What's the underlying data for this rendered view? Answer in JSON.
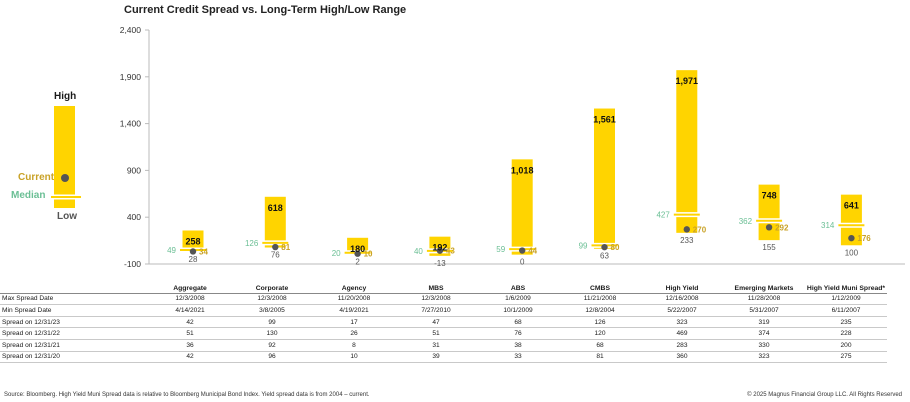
{
  "title": "Current Credit Spread vs. Long-Term High/Low Range",
  "legend": {
    "high": "High",
    "current": "Current",
    "median": "Median",
    "low": "Low"
  },
  "colors": {
    "bar": "#ffd400",
    "median": "#6bbf95",
    "current_dot": "#555555",
    "current_label": "#c9a227",
    "axis": "#bbbbbb"
  },
  "chart_data": {
    "type": "bar",
    "subtype": "high-low range with current and median markers",
    "ylim": [
      -100,
      2400
    ],
    "yticks": [
      "-100",
      "400",
      "900",
      "1,400",
      "1,900",
      "2,400"
    ],
    "ytick_values": [
      -100,
      400,
      900,
      1400,
      1900,
      2400
    ],
    "grid": false,
    "categories": [
      "Aggregate",
      "Corporate",
      "Agency",
      "MBS",
      "ABS",
      "CMBS",
      "High Yield",
      "Emerging Markets",
      "High Yield Muni Spread*"
    ],
    "high": [
      258,
      618,
      180,
      192,
      1018,
      1561,
      1971,
      748,
      641
    ],
    "low": [
      28,
      76,
      2,
      -13,
      0,
      63,
      233,
      155,
      100
    ],
    "current": [
      34,
      81,
      10,
      43,
      44,
      80,
      270,
      292,
      176
    ],
    "median": [
      49,
      126,
      20,
      40,
      59,
      99,
      427,
      362,
      314
    ],
    "high_labels": [
      "258",
      "618",
      "180",
      "192",
      "1,018",
      "1,561",
      "1,971",
      "748",
      "641"
    ],
    "low_labels": [
      "28",
      "76",
      "2",
      "-13",
      "0",
      "63",
      "233",
      "155",
      "100"
    ],
    "current_labels": [
      "34",
      "81",
      "10",
      "43",
      "44",
      "80",
      "270",
      "292",
      "176"
    ],
    "median_labels": [
      "49",
      "126",
      "20",
      "40",
      "59",
      "99",
      "427",
      "362",
      "314"
    ]
  },
  "table": {
    "headers": [
      "Aggregate",
      "Corporate",
      "Agency",
      "MBS",
      "ABS",
      "CMBS",
      "High Yield",
      "Emerging Markets",
      "High Yield Muni Spread*"
    ],
    "rows": [
      {
        "label": "Max Spread Date",
        "values": [
          "12/3/2008",
          "12/3/2008",
          "11/20/2008",
          "12/3/2008",
          "1/6/2009",
          "11/21/2008",
          "12/16/2008",
          "11/28/2008",
          "1/12/2009"
        ]
      },
      {
        "label": "Min Spread Date",
        "values": [
          "4/14/2021",
          "3/8/2005",
          "4/19/2021",
          "7/27/2010",
          "10/1/2009",
          "12/8/2004",
          "5/22/2007",
          "5/31/2007",
          "6/11/2007"
        ]
      },
      {
        "label": "Spread on 12/31/23",
        "values": [
          "42",
          "99",
          "17",
          "47",
          "68",
          "126",
          "323",
          "319",
          "235"
        ]
      },
      {
        "label": "Spread on 12/31/22",
        "values": [
          "51",
          "130",
          "26",
          "51",
          "76",
          "120",
          "469",
          "374",
          "228"
        ]
      },
      {
        "label": "Spread on 12/31/21",
        "values": [
          "36",
          "92",
          "8",
          "31",
          "38",
          "68",
          "283",
          "330",
          "200"
        ]
      },
      {
        "label": "Spread on 12/31/20",
        "values": [
          "42",
          "96",
          "10",
          "39",
          "33",
          "81",
          "360",
          "323",
          "275"
        ]
      }
    ]
  },
  "footer": {
    "source": "Source: Bloomberg. High Yield Muni Spread data is relative to Bloomberg Municipal Bond Index. Yield spread data is from 2004 – current.",
    "copyright": "© 2025 Magnus Financial Group LLC. All Rights Reserved"
  }
}
